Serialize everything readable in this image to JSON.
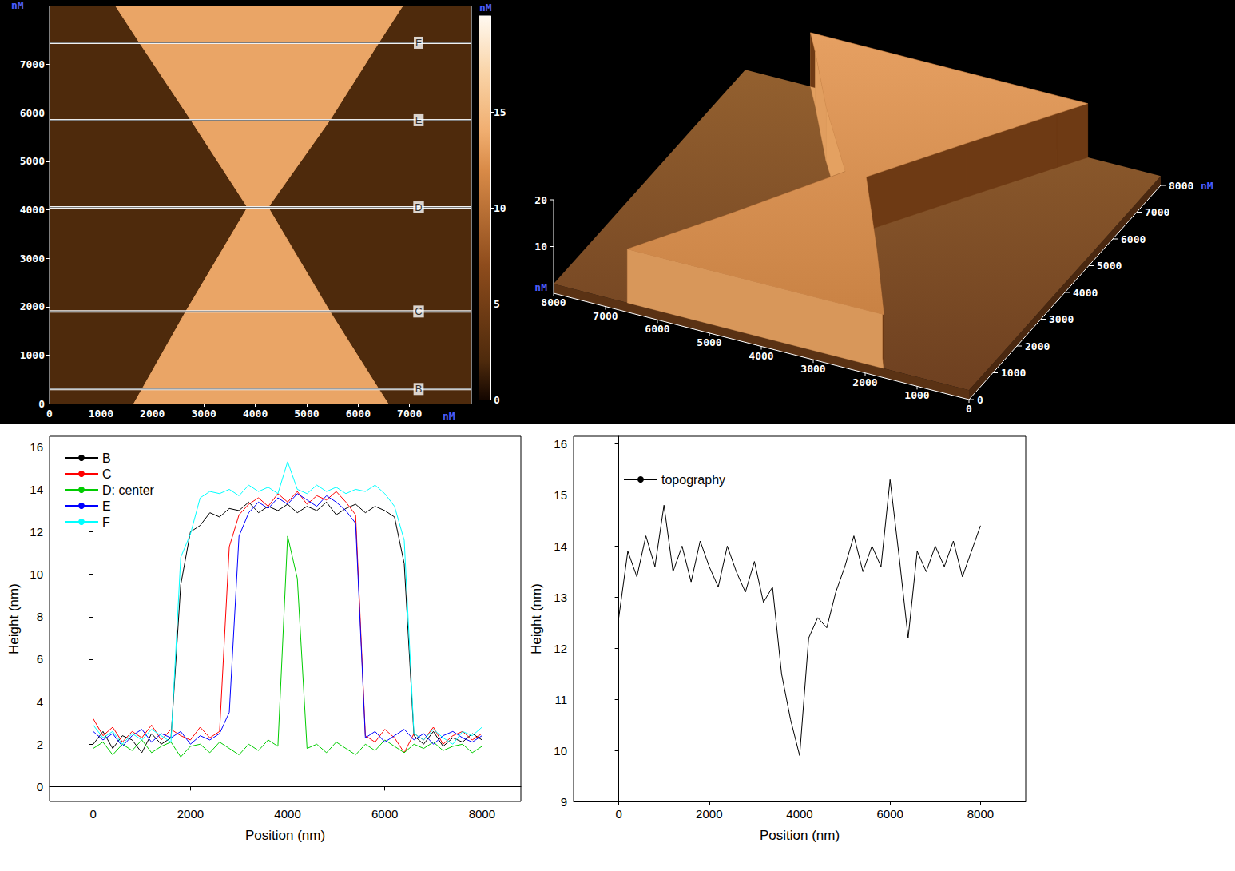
{
  "chart_data": [
    {
      "type": "afm_image",
      "x_unit": "nM",
      "y_unit": "nM",
      "xlim": [
        0,
        8200
      ],
      "ylim": [
        0,
        8200
      ],
      "xticks": [
        0,
        1000,
        2000,
        3000,
        4000,
        5000,
        6000,
        7000
      ],
      "yticks": [
        0,
        1000,
        2000,
        3000,
        4000,
        5000,
        6000,
        7000
      ],
      "background_height": 2,
      "regions": [
        {
          "height": 13.5,
          "polygon": [
            [
              1640,
              0
            ],
            [
              6580,
              0
            ],
            [
              6400,
              300
            ],
            [
              5450,
              1900
            ],
            [
              4250,
              4050
            ],
            [
              5450,
              5850
            ],
            [
              6400,
              7450
            ],
            [
              6860,
              8200
            ],
            [
              1290,
              8200
            ],
            [
              1750,
              7450
            ],
            [
              2750,
              5850
            ],
            [
              3850,
              4050
            ],
            [
              2650,
              1900
            ],
            [
              1800,
              300
            ]
          ]
        }
      ],
      "profile_lines": [
        {
          "label": "B",
          "y": 300
        },
        {
          "label": "C",
          "y": 1900
        },
        {
          "label": "D",
          "y": 4050
        },
        {
          "label": "E",
          "y": 5850
        },
        {
          "label": "F",
          "y": 7450
        }
      ],
      "colorbar": {
        "label": "nM",
        "range": [
          0,
          20
        ],
        "ticks": [
          0,
          5,
          10,
          15
        ]
      }
    },
    {
      "type": "surface3d",
      "y_unit": "nM",
      "z_unit": "nM",
      "xlim": [
        0,
        8000
      ],
      "ylim": [
        0,
        8000
      ],
      "zlim": [
        0,
        20
      ],
      "xticks": [
        0,
        1000,
        2000,
        3000,
        4000,
        5000,
        6000,
        7000,
        8000
      ],
      "yticks": [
        0,
        1000,
        2000,
        3000,
        4000,
        5000,
        6000,
        7000,
        8000
      ],
      "zticks": [
        10,
        20
      ],
      "background_height": 2,
      "regions": [
        {
          "height": 13.5,
          "polygon": [
            [
              1640,
              0
            ],
            [
              6580,
              0
            ],
            [
              6400,
              300
            ],
            [
              5450,
              1900
            ],
            [
              4250,
              4050
            ],
            [
              5450,
              5850
            ],
            [
              6400,
              7450
            ],
            [
              6744,
              8000
            ],
            [
              1406,
              8000
            ],
            [
              1750,
              7450
            ],
            [
              2750,
              5850
            ],
            [
              3850,
              4050
            ],
            [
              2650,
              1900
            ],
            [
              1800,
              300
            ]
          ]
        }
      ]
    },
    {
      "type": "line",
      "x_label": "Position (nm)",
      "y_label": "Height (nm)",
      "x": [
        0,
        200,
        400,
        600,
        800,
        1000,
        1200,
        1400,
        1600,
        1800,
        2000,
        2200,
        2400,
        2600,
        2800,
        3000,
        3200,
        3400,
        3600,
        3800,
        4000,
        4200,
        4400,
        4600,
        4800,
        5000,
        5200,
        5400,
        5600,
        5800,
        6000,
        6200,
        6400,
        6600,
        6800,
        7000,
        7200,
        7400,
        7600,
        7800,
        8000
      ],
      "series": [
        {
          "name": "B",
          "color": "#000000",
          "values": [
            2.0,
            2.6,
            1.8,
            2.4,
            2.2,
            1.6,
            2.5,
            2.0,
            2.3,
            9.5,
            12.0,
            12.3,
            12.9,
            12.7,
            13.1,
            13.0,
            13.4,
            12.9,
            13.2,
            13.0,
            13.3,
            12.9,
            13.2,
            13.0,
            13.4,
            12.8,
            13.1,
            13.3,
            12.9,
            13.2,
            13.0,
            12.7,
            10.5,
            2.4,
            2.0,
            2.6,
            1.9,
            2.3,
            2.1,
            2.5,
            2.2
          ]
        },
        {
          "name": "C",
          "color": "#ff0000",
          "values": [
            3.2,
            2.4,
            2.8,
            2.1,
            2.6,
            2.3,
            2.9,
            2.2,
            2.7,
            2.4,
            2.2,
            2.8,
            2.3,
            2.6,
            11.3,
            12.8,
            13.3,
            13.6,
            13.2,
            13.8,
            13.4,
            13.9,
            13.3,
            13.7,
            13.5,
            13.9,
            13.4,
            12.8,
            2.4,
            2.1,
            2.7,
            2.3,
            1.6,
            2.5,
            2.2,
            2.8,
            2.0,
            2.4,
            2.6,
            2.2,
            2.5
          ]
        },
        {
          "name": "D: center",
          "color": "#00cc00",
          "values": [
            1.8,
            2.1,
            1.5,
            2.0,
            1.7,
            2.2,
            1.6,
            1.9,
            2.1,
            1.4,
            1.9,
            2.0,
            1.6,
            2.1,
            1.8,
            1.5,
            2.0,
            1.7,
            2.2,
            1.9,
            11.8,
            9.8,
            1.8,
            2.0,
            1.6,
            2.1,
            1.8,
            1.5,
            2.0,
            1.7,
            2.2,
            1.9,
            1.6,
            2.0,
            1.8,
            2.1,
            1.7,
            1.9,
            2.0,
            1.6,
            1.9
          ]
        },
        {
          "name": "E",
          "color": "#0000ff",
          "values": [
            2.6,
            2.2,
            2.5,
            1.9,
            2.4,
            2.7,
            2.1,
            2.5,
            2.3,
            2.6,
            2.0,
            2.4,
            2.2,
            2.5,
            3.5,
            11.8,
            12.9,
            13.4,
            13.1,
            13.6,
            13.3,
            13.8,
            13.5,
            13.2,
            13.7,
            13.4,
            13.0,
            12.4,
            2.3,
            2.6,
            2.1,
            2.4,
            2.7,
            2.2,
            2.5,
            2.0,
            2.4,
            2.6,
            2.3,
            2.1,
            2.4
          ]
        },
        {
          "name": "F",
          "color": "#00ffff",
          "values": [
            2.9,
            2.3,
            2.6,
            2.0,
            2.5,
            2.2,
            2.7,
            2.4,
            2.1,
            10.8,
            11.9,
            13.6,
            13.9,
            13.8,
            14.0,
            13.7,
            14.2,
            13.9,
            14.1,
            13.8,
            15.3,
            14.0,
            13.8,
            14.2,
            13.9,
            14.1,
            13.8,
            14.0,
            13.9,
            14.2,
            13.8,
            13.2,
            11.6,
            2.5,
            2.2,
            2.7,
            2.3,
            2.0,
            2.6,
            2.4,
            2.8
          ]
        }
      ],
      "xlim": [
        -900,
        8800
      ],
      "ylim": [
        -0.7,
        16.5
      ],
      "xticks": [
        0,
        2000,
        4000,
        6000,
        8000
      ],
      "yticks": [
        0,
        2,
        4,
        6,
        8,
        10,
        12,
        14,
        16
      ],
      "legend": "upper left"
    },
    {
      "type": "line",
      "x_label": "Position (nm)",
      "y_label": "Height (nm)",
      "x": [
        0,
        200,
        400,
        600,
        800,
        1000,
        1200,
        1400,
        1600,
        1800,
        2000,
        2200,
        2400,
        2600,
        2800,
        3000,
        3200,
        3400,
        3600,
        3800,
        4000,
        4200,
        4400,
        4600,
        4800,
        5000,
        5200,
        5400,
        5600,
        5800,
        6000,
        6200,
        6400,
        6600,
        6800,
        7000,
        7200,
        7400,
        7600,
        7800,
        8000
      ],
      "series": [
        {
          "name": "topography",
          "color": "#000000",
          "values": [
            12.6,
            13.9,
            13.4,
            14.2,
            13.6,
            14.8,
            13.5,
            14.0,
            13.3,
            14.1,
            13.6,
            13.2,
            14.0,
            13.5,
            13.1,
            13.7,
            12.9,
            13.2,
            11.5,
            10.6,
            9.9,
            12.2,
            12.6,
            12.4,
            13.1,
            13.6,
            14.2,
            13.5,
            14.0,
            13.6,
            15.3,
            13.8,
            12.2,
            13.9,
            13.5,
            14.0,
            13.6,
            14.1,
            13.4,
            13.9,
            14.4
          ]
        }
      ],
      "xlim": [
        -1000,
        9000
      ],
      "ylim": [
        9,
        16.15
      ],
      "xticks": [
        0,
        2000,
        4000,
        6000,
        8000
      ],
      "yticks": [
        9,
        10,
        11,
        12,
        13,
        14,
        15,
        16
      ],
      "legend": "upper left"
    }
  ]
}
